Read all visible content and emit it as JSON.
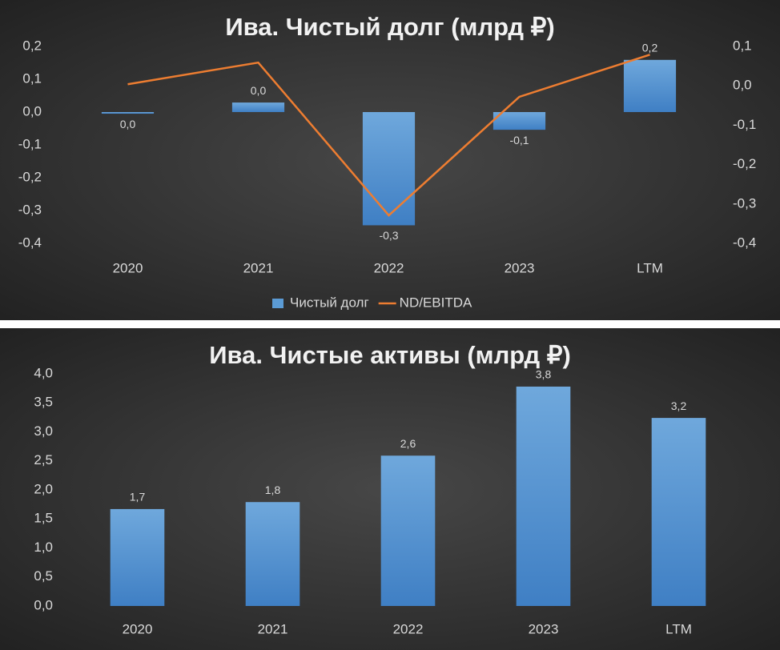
{
  "chart_data": [
    {
      "type": "combo",
      "title": "Ива. Чистый долг (млрд ₽)",
      "categories": [
        "2020",
        "2021",
        "2022",
        "2023",
        "LTM"
      ],
      "series": [
        {
          "name": "Чистый долг",
          "type": "bar",
          "color": "#5b9bd5",
          "values": [
            -0.005,
            0.029,
            -0.345,
            -0.054,
            0.159
          ],
          "value_labels": [
            "0,0",
            "0,0",
            "-0,3",
            "-0,1",
            "0,2"
          ]
        },
        {
          "name": "ND/EBITDA",
          "type": "line",
          "color": "#ed7d31",
          "axis": "y2",
          "values": [
            0.004,
            0.059,
            -0.329,
            -0.028,
            0.079
          ]
        }
      ],
      "ylim": [
        -0.4,
        0.2
      ],
      "yticks": [
        {
          "value": -0.4,
          "label": "-0,4"
        },
        {
          "value": -0.3,
          "label": "-0,3"
        },
        {
          "value": -0.2,
          "label": "-0,2"
        },
        {
          "value": -0.1,
          "label": "-0,1"
        },
        {
          "value": 0,
          "label": "0,0"
        },
        {
          "value": 0.1,
          "label": "0,1"
        },
        {
          "value": 0.2,
          "label": "0,2"
        }
      ],
      "y2lim": [
        -0.4,
        0.1
      ],
      "y2ticks": [
        {
          "value": -0.4,
          "label": "-0,4"
        },
        {
          "value": -0.3,
          "label": "-0,3"
        },
        {
          "value": -0.2,
          "label": "-0,2"
        },
        {
          "value": -0.1,
          "label": "-0,1"
        },
        {
          "value": 0,
          "label": "0,0"
        },
        {
          "value": 0.1,
          "label": "0,1"
        }
      ],
      "legend": "bottom"
    },
    {
      "type": "bar",
      "title": "Ива. Чистые активы (млрд ₽)",
      "categories": [
        "2020",
        "2021",
        "2022",
        "2023",
        "LTM"
      ],
      "values": [
        1.67,
        1.79,
        2.59,
        3.78,
        3.24
      ],
      "value_labels": [
        "1,7",
        "1,8",
        "2,6",
        "3,8",
        "3,2"
      ],
      "color": "#5b9bd5",
      "ylim": [
        0,
        4
      ],
      "yticks": [
        {
          "value": 0,
          "label": "0,0"
        },
        {
          "value": 0.5,
          "label": "0,5"
        },
        {
          "value": 1,
          "label": "1,0"
        },
        {
          "value": 1.5,
          "label": "1,5"
        },
        {
          "value": 2,
          "label": "2,0"
        },
        {
          "value": 2.5,
          "label": "2,5"
        },
        {
          "value": 3,
          "label": "3,0"
        },
        {
          "value": 3.5,
          "label": "3,5"
        },
        {
          "value": 4,
          "label": "4,0"
        }
      ]
    }
  ]
}
